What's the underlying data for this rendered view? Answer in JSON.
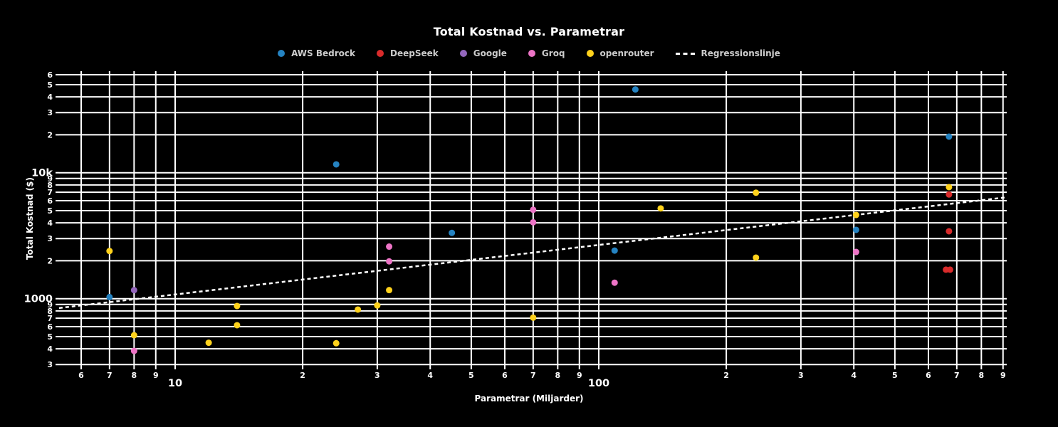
{
  "chart_data": {
    "type": "scatter",
    "title": "Total Kostnad vs. Parametrar",
    "xlabel": "Parametrar (Miljarder)",
    "ylabel": "Total Kostnad ($)",
    "x_scale": "log",
    "y_scale": "log",
    "x_range_billions": [
      5.3,
      920
    ],
    "y_range_dollars": [
      300,
      64000
    ],
    "grid": true,
    "legend_position": "top-center",
    "background_color": "#000000",
    "grid_color": "#ffffff",
    "tick_text_color": "#ffffff",
    "legend_text_color": "#cccccc",
    "series": [
      {
        "name": "AWS Bedrock",
        "color": "#2583c2",
        "points": [
          [
            7,
            1030
          ],
          [
            24,
            11650
          ],
          [
            45,
            3330
          ],
          [
            109,
            2410
          ],
          [
            122,
            45800
          ],
          [
            405,
            3520
          ],
          [
            671,
            19340
          ]
        ]
      },
      {
        "name": "DeepSeek",
        "color": "#d92b2b",
        "points": [
          [
            671,
            6720
          ],
          [
            671,
            3430
          ],
          [
            660,
            1700
          ],
          [
            675,
            1700
          ]
        ]
      },
      {
        "name": "Google",
        "color": "#9467bd",
        "points": [
          [
            8,
            1170
          ]
        ]
      },
      {
        "name": "Groq",
        "color": "#ed74c6",
        "points": [
          [
            8,
            385
          ],
          [
            32,
            2590
          ],
          [
            32,
            1980
          ],
          [
            70,
            5080
          ],
          [
            70,
            4040
          ],
          [
            109,
            1340
          ],
          [
            405,
            2350
          ]
        ]
      },
      {
        "name": "openrouter",
        "color": "#ffd21c",
        "points": [
          [
            7,
            2390
          ],
          [
            8,
            513
          ],
          [
            12,
            447
          ],
          [
            14,
            875
          ],
          [
            14,
            616
          ],
          [
            24,
            443
          ],
          [
            27,
            820
          ],
          [
            30,
            884
          ],
          [
            32,
            1170
          ],
          [
            70,
            707
          ],
          [
            140,
            5210
          ],
          [
            235,
            6940
          ],
          [
            235,
            2120
          ],
          [
            405,
            4620
          ],
          [
            671,
            7680
          ]
        ]
      }
    ],
    "regression": {
      "name": "Regressionslinje",
      "style": "dashed",
      "color": "#ffffff",
      "x": [
        5.32,
        918
      ],
      "y": [
        843,
        6383
      ]
    },
    "x_ticks": [
      {
        "v": 6,
        "t": "6"
      },
      {
        "v": 7,
        "t": "7"
      },
      {
        "v": 8,
        "t": "8"
      },
      {
        "v": 9,
        "t": "9"
      },
      {
        "v": 10,
        "t": "10",
        "major": true
      },
      {
        "v": 20,
        "t": "2"
      },
      {
        "v": 30,
        "t": "3"
      },
      {
        "v": 40,
        "t": "4"
      },
      {
        "v": 50,
        "t": "5"
      },
      {
        "v": 60,
        "t": "6"
      },
      {
        "v": 70,
        "t": "7"
      },
      {
        "v": 80,
        "t": "8"
      },
      {
        "v": 90,
        "t": "9"
      },
      {
        "v": 100,
        "t": "100",
        "major": true
      },
      {
        "v": 200,
        "t": "2"
      },
      {
        "v": 300,
        "t": "3"
      },
      {
        "v": 400,
        "t": "4"
      },
      {
        "v": 500,
        "t": "5"
      },
      {
        "v": 600,
        "t": "6"
      },
      {
        "v": 700,
        "t": "7"
      },
      {
        "v": 800,
        "t": "8"
      },
      {
        "v": 900,
        "t": "9"
      }
    ],
    "y_ticks": [
      {
        "v": 300,
        "t": "3"
      },
      {
        "v": 400,
        "t": "4"
      },
      {
        "v": 500,
        "t": "5"
      },
      {
        "v": 600,
        "t": "6"
      },
      {
        "v": 700,
        "t": "7"
      },
      {
        "v": 800,
        "t": "8"
      },
      {
        "v": 900,
        "t": "9"
      },
      {
        "v": 1000,
        "t": "1000",
        "major": true
      },
      {
        "v": 2000,
        "t": "2"
      },
      {
        "v": 3000,
        "t": "3"
      },
      {
        "v": 4000,
        "t": "4"
      },
      {
        "v": 5000,
        "t": "5"
      },
      {
        "v": 6000,
        "t": "6"
      },
      {
        "v": 7000,
        "t": "7"
      },
      {
        "v": 8000,
        "t": "8"
      },
      {
        "v": 9000,
        "t": "9"
      },
      {
        "v": 10000,
        "t": "10k",
        "major": true
      },
      {
        "v": 20000,
        "t": "2"
      },
      {
        "v": 30000,
        "t": "3"
      },
      {
        "v": 40000,
        "t": "4"
      },
      {
        "v": 50000,
        "t": "5"
      },
      {
        "v": 60000,
        "t": "6"
      }
    ]
  }
}
